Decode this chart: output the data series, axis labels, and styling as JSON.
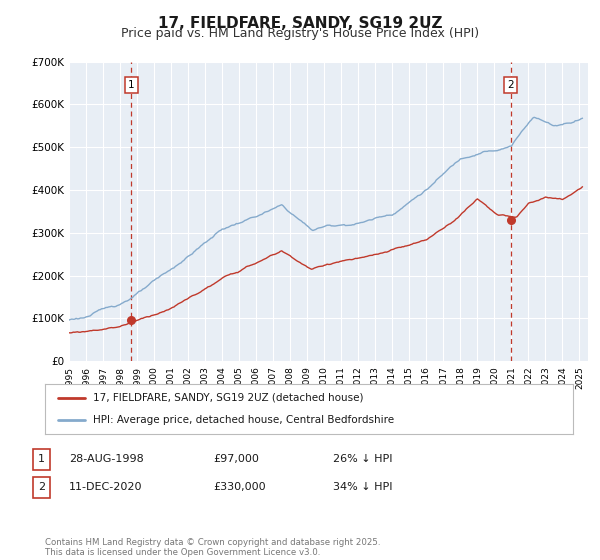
{
  "title": "17, FIELDFARE, SANDY, SG19 2UZ",
  "subtitle": "Price paid vs. HM Land Registry's House Price Index (HPI)",
  "ylim": [
    0,
    700000
  ],
  "yticks": [
    0,
    100000,
    200000,
    300000,
    400000,
    500000,
    600000,
    700000
  ],
  "ytick_labels": [
    "£0",
    "£100K",
    "£200K",
    "£300K",
    "£400K",
    "£500K",
    "£600K",
    "£700K"
  ],
  "xlim_start": 1995.0,
  "xlim_end": 2025.5,
  "hpi_color": "#85aacc",
  "price_color": "#c0392b",
  "marker1_x": 1998.65,
  "marker1_y": 97000,
  "marker2_x": 2020.95,
  "marker2_y": 330000,
  "vline1_x": 1998.65,
  "vline2_x": 2020.95,
  "legend_label_price": "17, FIELDFARE, SANDY, SG19 2UZ (detached house)",
  "legend_label_hpi": "HPI: Average price, detached house, Central Bedfordshire",
  "table_row1": [
    "1",
    "28-AUG-1998",
    "£97,000",
    "26% ↓ HPI"
  ],
  "table_row2": [
    "2",
    "11-DEC-2020",
    "£330,000",
    "34% ↓ HPI"
  ],
  "footer": "Contains HM Land Registry data © Crown copyright and database right 2025.\nThis data is licensed under the Open Government Licence v3.0.",
  "plot_bg_color": "#e8eef5",
  "outer_bg": "#ffffff",
  "grid_color": "#ffffff",
  "title_fontsize": 11,
  "subtitle_fontsize": 9
}
